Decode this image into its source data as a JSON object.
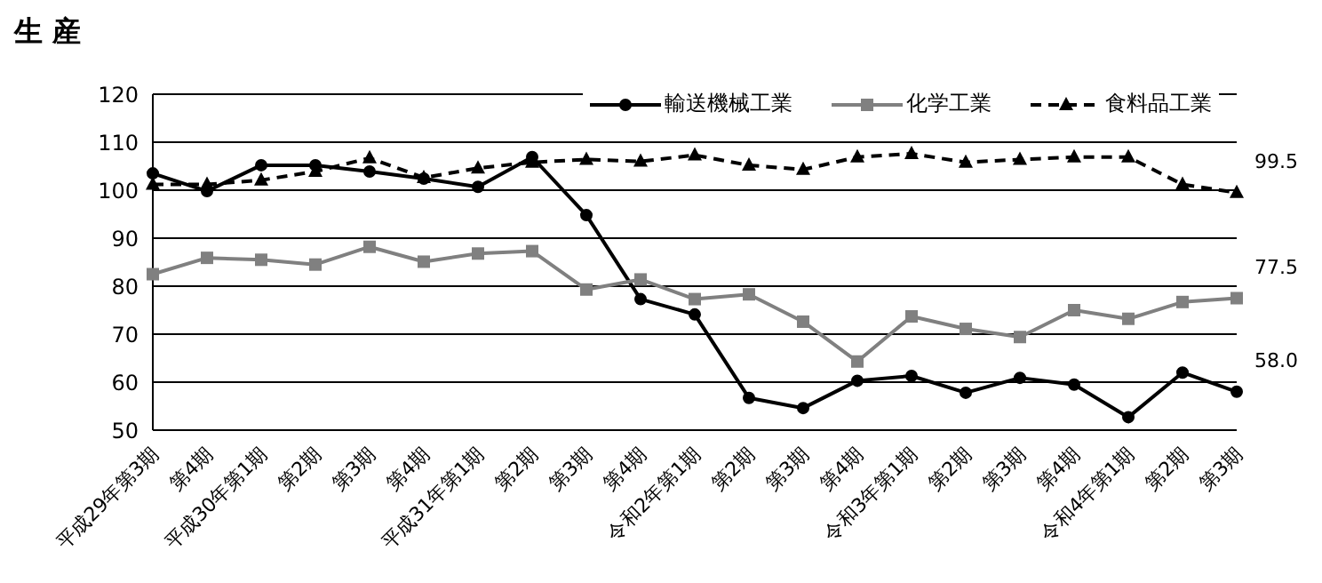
{
  "chart_data": {
    "type": "line",
    "title": "生 産",
    "categories": [
      "平成29年第3期",
      "第4期",
      "平成30年第1期",
      "第2期",
      "第3期",
      "第4期",
      "平成31年第1期",
      "第2期",
      "第3期",
      "第4期",
      "令和2年第1期",
      "第2期",
      "第3期",
      "第4期",
      "令和3年第1期",
      "第2期",
      "第3期",
      "第4期",
      "令和4年第1期",
      "第2期",
      "第3期"
    ],
    "series": [
      {
        "name": "輸送機械工業",
        "color": "#000000",
        "marker": "circle",
        "line_style": "solid",
        "values": [
          103.5,
          99.8,
          105.2,
          105.2,
          103.9,
          102.4,
          100.7,
          106.9,
          94.8,
          77.3,
          74.1,
          56.7,
          54.6,
          60.3,
          61.3,
          57.8,
          60.9,
          59.5,
          52.7,
          62.0,
          58.0
        ],
        "value_labels": [
          null,
          null,
          null,
          null,
          null,
          null,
          null,
          null,
          null,
          null,
          null,
          null,
          null,
          null,
          null,
          null,
          null,
          null,
          null,
          null,
          "58.0"
        ]
      },
      {
        "name": "化学工業",
        "color": "#808080",
        "marker": "square",
        "line_style": "solid",
        "values": [
          82.5,
          85.9,
          85.5,
          84.5,
          88.2,
          85.1,
          86.8,
          87.3,
          79.3,
          81.4,
          77.3,
          78.3,
          72.6,
          64.3,
          73.7,
          71.1,
          69.4,
          75.0,
          73.2,
          76.7,
          77.5
        ],
        "value_labels": [
          null,
          null,
          null,
          null,
          null,
          null,
          null,
          null,
          null,
          null,
          null,
          null,
          null,
          null,
          null,
          null,
          null,
          null,
          null,
          null,
          "77.5"
        ]
      },
      {
        "name": "食料品工業",
        "color": "#000000",
        "marker": "triangle",
        "line_style": "dashed",
        "values": [
          101.2,
          101.2,
          102.1,
          103.9,
          106.7,
          102.6,
          104.6,
          105.8,
          106.4,
          106.0,
          107.3,
          105.2,
          104.3,
          106.9,
          107.6,
          105.8,
          106.4,
          106.9,
          106.9,
          101.2,
          99.5
        ],
        "value_labels": [
          null,
          null,
          null,
          null,
          null,
          null,
          null,
          null,
          null,
          null,
          null,
          null,
          null,
          null,
          null,
          null,
          null,
          null,
          null,
          null,
          "99.5"
        ]
      }
    ],
    "ylim": [
      50,
      120
    ],
    "yticks": [
      50,
      60,
      70,
      80,
      90,
      100,
      110,
      120
    ],
    "grid": "y",
    "legend": "top right"
  }
}
